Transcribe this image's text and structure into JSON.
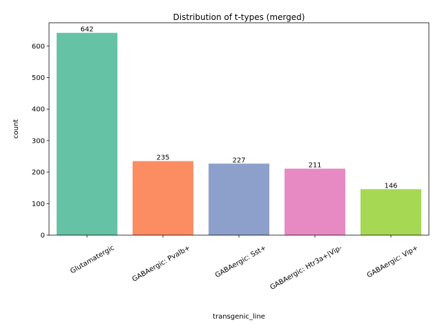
{
  "chart_data": {
    "type": "bar",
    "title": "Distribution of t-types (merged)",
    "xlabel": "transgenic_line",
    "ylabel": "count",
    "categories": [
      "Glutamatergic",
      "GABAergic: Pvalb+",
      "GABAergic: Sst+",
      "GABAergic: Htr3a+|Vip-",
      "GABAergic: Vip+"
    ],
    "values": [
      642,
      235,
      227,
      211,
      146
    ],
    "data_labels": [
      "642",
      "235",
      "227",
      "211",
      "146"
    ],
    "colors": [
      "#66c2a5",
      "#fc8d62",
      "#8da0cb",
      "#e78ac3",
      "#a6d854"
    ],
    "ylim": [
      0,
      674
    ],
    "yticks": [
      0,
      100,
      200,
      300,
      400,
      500,
      600
    ],
    "grid": false,
    "legend": "none"
  }
}
